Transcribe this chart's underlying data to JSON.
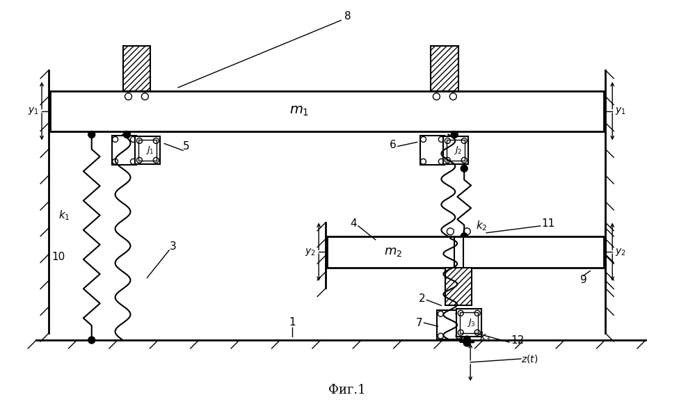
{
  "title": "Фиг.1",
  "bg_color": "#ffffff",
  "line_color": "#000000",
  "fig_width": 9.99,
  "fig_height": 5.91,
  "dpi": 100
}
